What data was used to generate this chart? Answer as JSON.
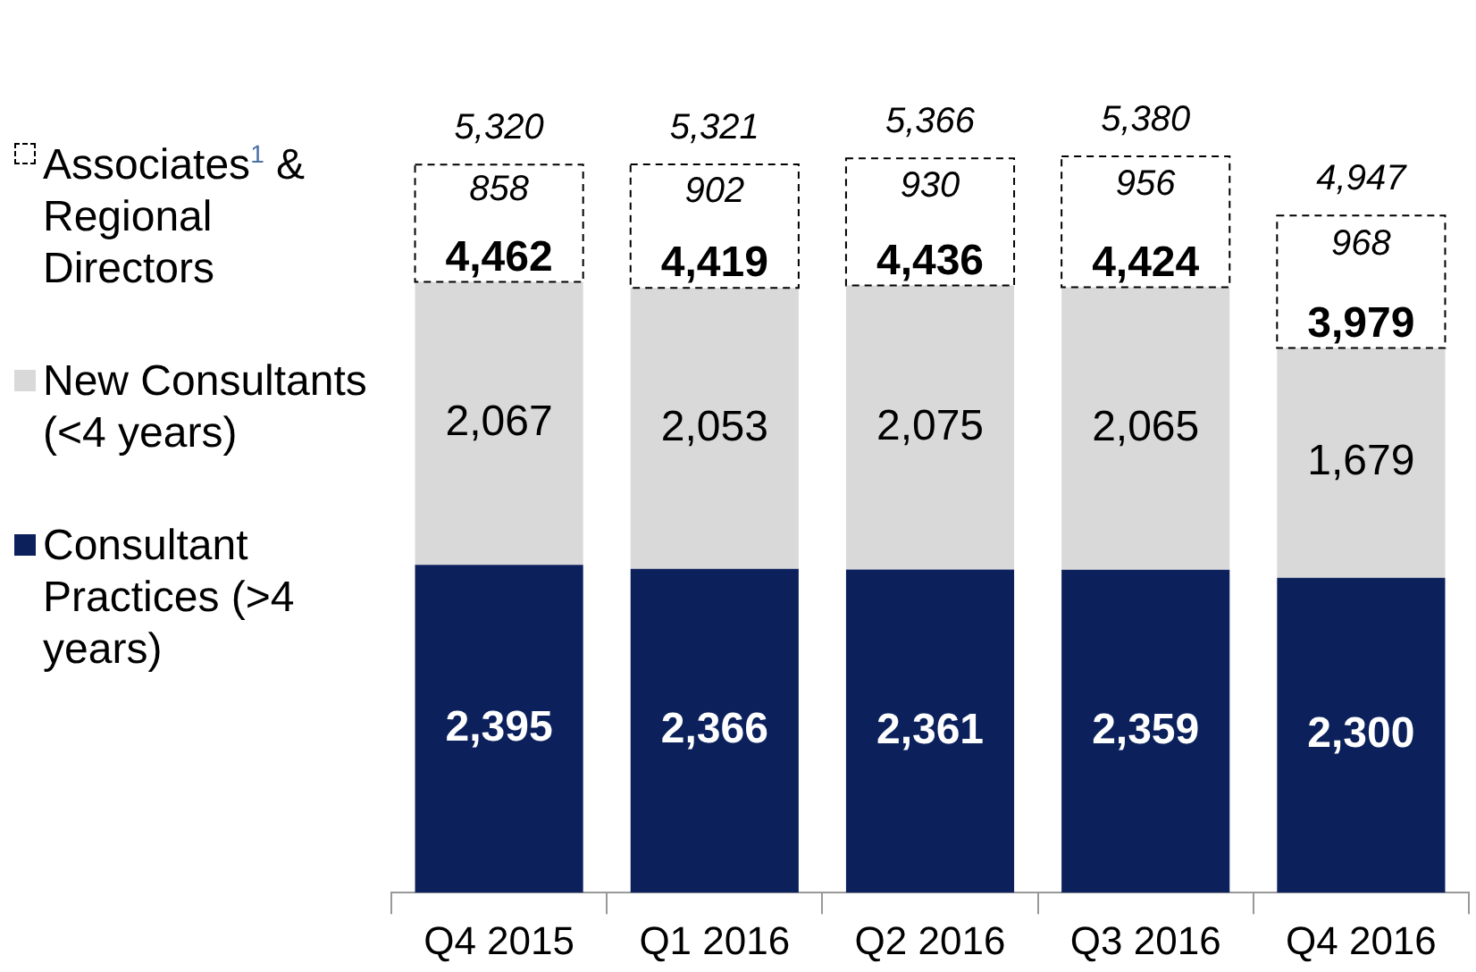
{
  "chart_data": {
    "type": "bar",
    "stacked": true,
    "categories": [
      "Q4 2015",
      "Q1 2016",
      "Q2 2016",
      "Q3 2016",
      "Q4 2016"
    ],
    "series": [
      {
        "name": "Consultant Practices (>4 years)",
        "color": "#0c215c",
        "values": [
          2395,
          2366,
          2361,
          2359,
          2300
        ],
        "value_labels": [
          "2,395",
          "2,366",
          "2,361",
          "2,359",
          "2,300"
        ]
      },
      {
        "name": "New Consultants (<4 years)",
        "color": "#d9d9d9",
        "values": [
          2067,
          2053,
          2075,
          2065,
          1679
        ],
        "value_labels": [
          "2,067",
          "2,053",
          "2,075",
          "2,065",
          "1,679"
        ]
      },
      {
        "name": "Associates$^{1}$ & Regional Directors",
        "color": "#ffffff",
        "line_style": "dashed",
        "values": [
          858,
          902,
          930,
          956,
          968
        ],
        "value_labels": [
          "858",
          "902",
          "930",
          "956",
          "968"
        ]
      }
    ],
    "annotations": [
      {
        "text": "4,462",
        "x": "Q4 2015",
        "y": 4462
      },
      {
        "text": "4,419",
        "x": "Q1 2016",
        "y": 4419
      },
      {
        "text": "4,436",
        "x": "Q2 2016",
        "y": 4436
      },
      {
        "text": "4,424",
        "x": "Q3 2016",
        "y": 4424
      },
      {
        "text": "3,979",
        "x": "Q4 2016",
        "y": 3979
      }
    ],
    "totals": [
      "5,320",
      "5,321",
      "5,366",
      "5,380",
      "4,947"
    ],
    "legend": "left",
    "grid": false
  }
}
